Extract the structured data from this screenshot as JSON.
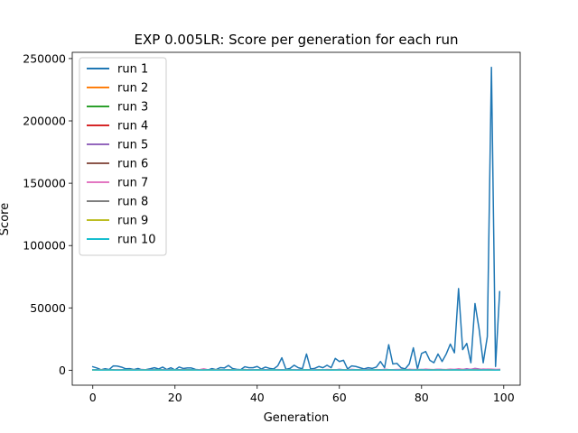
{
  "chart_data": {
    "type": "line",
    "title": "EXP 0.005LR: Score per generation for each run",
    "xlabel": "Generation",
    "ylabel": "Score",
    "xlim": [
      -5,
      104
    ],
    "ylim": [
      -12000,
      255000
    ],
    "xticks": [
      0,
      20,
      40,
      60,
      80,
      100
    ],
    "xtick_labels": [
      "0",
      "20",
      "40",
      "60",
      "80",
      "100"
    ],
    "yticks": [
      0,
      50000,
      100000,
      150000,
      200000,
      250000
    ],
    "ytick_labels": [
      "0",
      "50000",
      "100000",
      "150000",
      "200000",
      "250000"
    ],
    "grid": false,
    "legend_position": "upper-left",
    "series": [
      {
        "name": "run 1",
        "color": "#1f77b4",
        "values": [
          2800,
          1800,
          400,
          1200,
          600,
          3500,
          3300,
          2500,
          1200,
          1300,
          600,
          1400,
          300,
          600,
          1200,
          2000,
          1000,
          2500,
          600,
          2000,
          300,
          2600,
          1400,
          1800,
          1800,
          700,
          400,
          800,
          200,
          1300,
          500,
          2100,
          1800,
          3800,
          1400,
          800,
          500,
          2800,
          2000,
          2000,
          3000,
          1000,
          2500,
          1500,
          1000,
          3500,
          10000,
          800,
          1500,
          4000,
          2000,
          1200,
          13000,
          1000,
          1500,
          3000,
          2000,
          4000,
          2000,
          9500,
          7000,
          8000,
          1000,
          3500,
          3000,
          2000,
          1000,
          2000,
          1500,
          2500,
          7000,
          2000,
          20500,
          5000,
          5500,
          2000,
          1000,
          5000,
          18000,
          1000,
          13500,
          15000,
          8000,
          6000,
          13000,
          7000,
          13000,
          21000,
          14000,
          65500,
          16500,
          21500,
          6000,
          53500,
          33000,
          6000,
          27000,
          243000,
          3000,
          63000
        ]
      },
      {
        "name": "run 2",
        "color": "#ff7f0e",
        "values": [
          300,
          200,
          400,
          200,
          100,
          300,
          200,
          500,
          200,
          300,
          200,
          400,
          100,
          300,
          200,
          300,
          200,
          400,
          300,
          200,
          300,
          200,
          400,
          300,
          200,
          300,
          200,
          300,
          400,
          200,
          300,
          200,
          300,
          200,
          400,
          300,
          200,
          300,
          200,
          300,
          400,
          300,
          200,
          300,
          200,
          400,
          300,
          200,
          300,
          400,
          200,
          300,
          200,
          400,
          300,
          200,
          300,
          200,
          400,
          300,
          200,
          300,
          400,
          200,
          300,
          200,
          300,
          400,
          300,
          200,
          300,
          400,
          200,
          300,
          200,
          400,
          300,
          200,
          300,
          400,
          200,
          300,
          400,
          300,
          200,
          300,
          400,
          200,
          300,
          400,
          300,
          200,
          300,
          400,
          200,
          300,
          400,
          300,
          200,
          300
        ]
      },
      {
        "name": "run 3",
        "color": "#2ca02c",
        "values": [
          200,
          300,
          100,
          200,
          300,
          200,
          100,
          300,
          200,
          100,
          200,
          300,
          200,
          100,
          200,
          300,
          200,
          100,
          200,
          300,
          200,
          100,
          300,
          200,
          100,
          200,
          300,
          200,
          100,
          200,
          300,
          200,
          100,
          200,
          300,
          200,
          100,
          200,
          300,
          200,
          100,
          200,
          300,
          200,
          100,
          200,
          300,
          200,
          100,
          200,
          300,
          200,
          100,
          200,
          300,
          200,
          100,
          200,
          300,
          200,
          100,
          200,
          300,
          200,
          100,
          200,
          300,
          200,
          100,
          200,
          300,
          200,
          100,
          200,
          300,
          200,
          100,
          200,
          300,
          200,
          100,
          200,
          300,
          200,
          100,
          200,
          300,
          200,
          100,
          200,
          300,
          200,
          100,
          200,
          300,
          200,
          100,
          200,
          300,
          200
        ]
      },
      {
        "name": "run 4",
        "color": "#d62728",
        "values": [
          100,
          200,
          300,
          200,
          100,
          200,
          300,
          200,
          100,
          200,
          300,
          200,
          100,
          200,
          300,
          200,
          100,
          200,
          300,
          200,
          100,
          200,
          300,
          200,
          100,
          200,
          300,
          200,
          100,
          200,
          300,
          200,
          100,
          200,
          300,
          200,
          100,
          200,
          300,
          200,
          100,
          200,
          300,
          200,
          100,
          200,
          300,
          200,
          100,
          200,
          300,
          200,
          100,
          200,
          300,
          200,
          100,
          200,
          300,
          200,
          100,
          200,
          300,
          200,
          100,
          200,
          300,
          200,
          100,
          200,
          300,
          200,
          100,
          200,
          300,
          200,
          100,
          200,
          300,
          200,
          100,
          200,
          300,
          200,
          100,
          200,
          300,
          200,
          100,
          200,
          300,
          200,
          100,
          200,
          300,
          200,
          100,
          200,
          300,
          200
        ]
      },
      {
        "name": "run 5",
        "color": "#9467bd",
        "values": [
          300,
          400,
          200,
          500,
          300,
          200,
          400,
          300,
          500,
          200,
          300,
          400,
          200,
          300,
          500,
          200,
          400,
          300,
          200,
          400,
          300,
          500,
          200,
          300,
          400,
          200,
          300,
          500,
          400,
          300,
          200,
          400,
          300,
          500,
          200,
          300,
          400,
          600,
          300,
          200,
          400,
          300,
          500,
          200,
          300,
          400,
          300,
          200,
          500,
          300,
          400,
          200,
          300,
          500,
          400,
          300,
          200,
          400,
          500,
          300,
          800,
          400,
          300,
          500,
          400,
          300,
          600,
          400,
          300,
          500,
          400,
          600,
          300,
          500,
          400,
          700,
          500,
          400,
          600,
          500,
          700,
          400,
          600,
          500,
          800,
          600,
          500,
          700,
          600,
          900,
          700,
          1200,
          800,
          1500,
          1000,
          700,
          900,
          800,
          600,
          500
        ]
      },
      {
        "name": "run 6",
        "color": "#8c564b",
        "values": [
          200,
          300,
          200,
          100,
          200,
          300,
          200,
          100,
          200,
          300,
          200,
          100,
          200,
          300,
          200,
          100,
          200,
          300,
          200,
          100,
          200,
          300,
          200,
          100,
          200,
          300,
          200,
          100,
          200,
          300,
          200,
          100,
          200,
          300,
          200,
          100,
          200,
          300,
          200,
          100,
          200,
          300,
          200,
          100,
          200,
          300,
          200,
          100,
          200,
          300,
          200,
          100,
          200,
          300,
          200,
          100,
          200,
          300,
          200,
          100,
          200,
          300,
          200,
          100,
          200,
          300,
          200,
          100,
          200,
          300,
          200,
          100,
          200,
          300,
          200,
          100,
          200,
          300,
          200,
          100,
          200,
          300,
          200,
          100,
          200,
          300,
          200,
          100,
          200,
          300,
          200,
          100,
          200,
          300,
          200,
          100,
          200,
          300,
          200,
          100
        ]
      },
      {
        "name": "run 7",
        "color": "#e377c2",
        "values": [
          400,
          300,
          500,
          200,
          400,
          300,
          600,
          400,
          300,
          500,
          400,
          300,
          700,
          400,
          300,
          500,
          400,
          600,
          300,
          500,
          400,
          300,
          600,
          500,
          400,
          300,
          500,
          1200,
          400,
          300,
          500,
          400,
          600,
          300,
          500,
          400,
          300,
          600,
          400,
          500,
          400,
          600,
          300,
          500,
          400,
          600,
          400,
          500,
          300,
          600,
          400,
          500,
          400,
          300,
          600,
          500,
          400,
          700,
          500,
          400,
          600,
          500,
          400,
          800,
          500,
          600,
          400,
          700,
          500,
          600,
          400,
          800,
          600,
          500,
          700,
          600,
          500,
          800,
          600,
          700,
          500,
          900,
          700,
          600,
          800,
          700,
          600,
          900,
          700,
          1200,
          800,
          700,
          900,
          800,
          700,
          1000,
          800,
          900,
          700,
          800
        ]
      },
      {
        "name": "run 8",
        "color": "#7f7f7f",
        "values": [
          100,
          200,
          100,
          200,
          300,
          200,
          100,
          200,
          100,
          200,
          300,
          200,
          100,
          200,
          100,
          200,
          300,
          200,
          100,
          200,
          100,
          200,
          300,
          200,
          100,
          200,
          100,
          200,
          300,
          200,
          100,
          200,
          100,
          200,
          300,
          200,
          100,
          200,
          100,
          200,
          300,
          200,
          100,
          200,
          100,
          200,
          300,
          200,
          100,
          200,
          100,
          200,
          300,
          200,
          100,
          200,
          100,
          200,
          300,
          200,
          100,
          200,
          100,
          200,
          300,
          200,
          100,
          200,
          100,
          200,
          300,
          200,
          100,
          200,
          100,
          200,
          300,
          200,
          100,
          200,
          100,
          200,
          300,
          200,
          100,
          200,
          100,
          200,
          300,
          200,
          100,
          200,
          100,
          200,
          300,
          200,
          100,
          200,
          100,
          200
        ]
      },
      {
        "name": "run 9",
        "color": "#bcbd22",
        "values": [
          200,
          100,
          300,
          200,
          100,
          200,
          300,
          100,
          200,
          300,
          200,
          100,
          200,
          300,
          100,
          200,
          300,
          200,
          100,
          200,
          300,
          100,
          200,
          300,
          200,
          100,
          200,
          300,
          100,
          200,
          300,
          200,
          100,
          200,
          300,
          100,
          200,
          300,
          200,
          100,
          200,
          300,
          100,
          200,
          300,
          200,
          100,
          200,
          300,
          100,
          200,
          300,
          200,
          100,
          200,
          300,
          100,
          200,
          300,
          200,
          100,
          200,
          300,
          100,
          200,
          300,
          200,
          100,
          200,
          300,
          100,
          200,
          300,
          200,
          100,
          200,
          300,
          100,
          200,
          300,
          200,
          100,
          200,
          300,
          100,
          200,
          300,
          200,
          100,
          200,
          300,
          100,
          200,
          300,
          200,
          100,
          200,
          300,
          100,
          200
        ]
      },
      {
        "name": "run 10",
        "color": "#17becf",
        "values": [
          300,
          200,
          100,
          200,
          300,
          200,
          100,
          200,
          300,
          200,
          100,
          200,
          300,
          200,
          100,
          200,
          300,
          200,
          100,
          200,
          300,
          200,
          100,
          200,
          300,
          200,
          100,
          200,
          300,
          200,
          100,
          200,
          300,
          200,
          100,
          200,
          300,
          200,
          100,
          200,
          300,
          200,
          100,
          200,
          300,
          200,
          100,
          200,
          300,
          200,
          100,
          200,
          300,
          200,
          100,
          200,
          300,
          200,
          100,
          200,
          300,
          200,
          100,
          200,
          300,
          200,
          100,
          200,
          300,
          200,
          100,
          200,
          300,
          200,
          100,
          200,
          300,
          200,
          100,
          200,
          300,
          200,
          100,
          200,
          300,
          200,
          100,
          200,
          300,
          200,
          100,
          200,
          300,
          200,
          100,
          200,
          300,
          200,
          100,
          200
        ]
      }
    ]
  }
}
